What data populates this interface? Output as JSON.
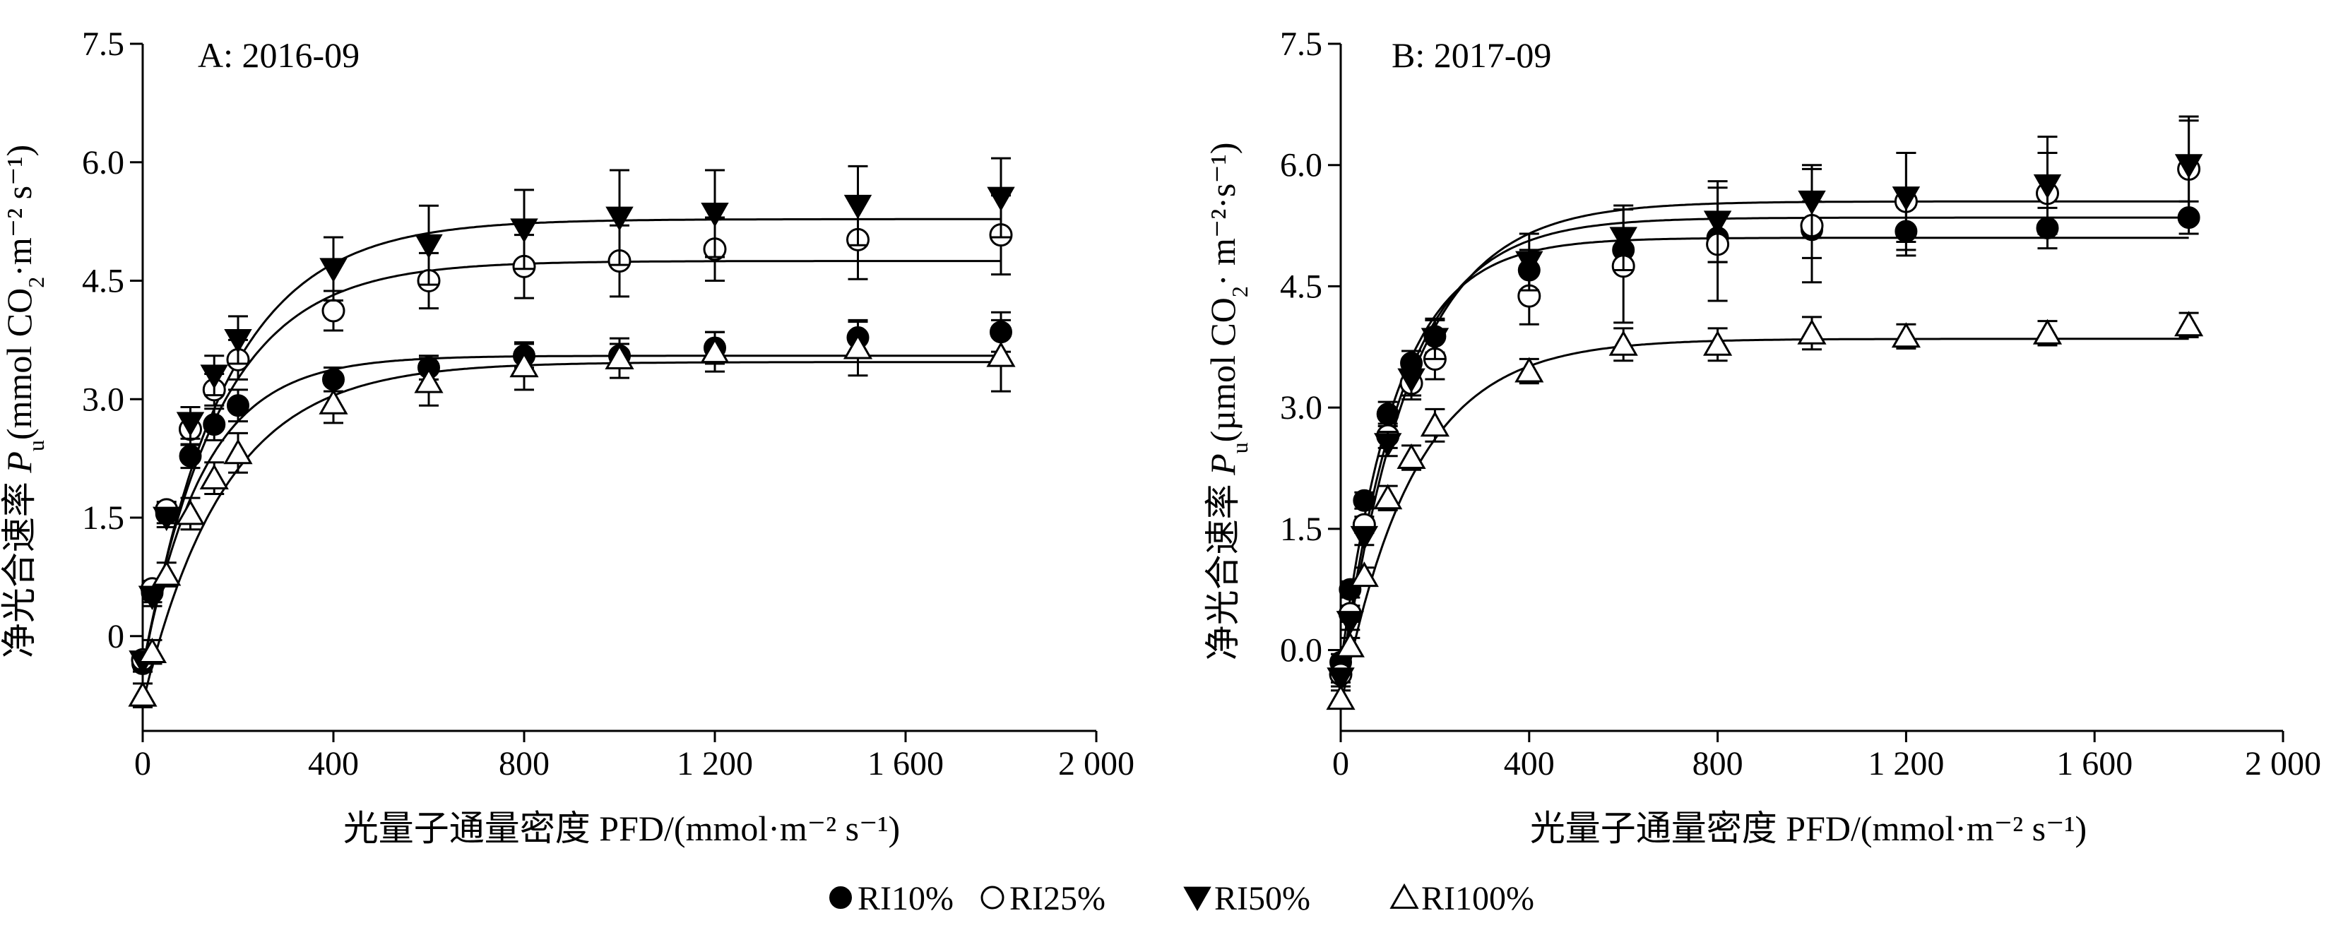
{
  "chart_data": [
    {
      "type": "scatter",
      "panel_label": "A: 2016-09",
      "xlabel": "光量子通量密度 PFD/(mmol·m⁻² s⁻¹)",
      "ylabel_prefix": "净光合速率 ",
      "ylabel_italic": "P",
      "ylabel_sub": "u",
      "ylabel_unit": "(mmol CO",
      "ylabel_unit_sub": "2",
      "ylabel_unit_rest": "·m⁻² s⁻¹)",
      "xlim": [
        0,
        2000
      ],
      "ylim": [
        -1.2,
        7.5
      ],
      "xticks": [
        0,
        400,
        800,
        1200,
        1600,
        2000
      ],
      "xtick_labels": [
        "0",
        "400",
        "800",
        "1 200",
        "1 600",
        "2 000"
      ],
      "yticks": [
        0,
        1.5,
        3.0,
        4.5,
        6.0,
        7.5
      ],
      "ytick_labels": [
        "0",
        "1.5",
        "3.0",
        "4.5",
        "6.0",
        "7.5"
      ],
      "x": [
        0,
        20,
        50,
        100,
        150,
        200,
        400,
        600,
        800,
        1000,
        1200,
        1500,
        1800
      ],
      "series": [
        {
          "name": "RI10%",
          "marker": "filled-circle",
          "values": [
            -0.35,
            0.55,
            1.55,
            2.28,
            2.68,
            2.92,
            3.25,
            3.4,
            3.55,
            3.55,
            3.65,
            3.78,
            3.85
          ],
          "errors": [
            0.1,
            0.12,
            0.12,
            0.15,
            0.2,
            0.2,
            0.15,
            0.15,
            0.15,
            0.15,
            0.2,
            0.2,
            0.25
          ],
          "fit": {
            "pmax": 3.55,
            "k": 0.0078,
            "r": -0.4
          }
        },
        {
          "name": "RI25%",
          "marker": "open-circle",
          "values": [
            -0.3,
            0.6,
            1.6,
            2.62,
            3.12,
            3.5,
            4.12,
            4.5,
            4.68,
            4.75,
            4.9,
            5.02,
            5.08
          ],
          "errors": [
            0.1,
            0.1,
            0.1,
            0.2,
            0.2,
            0.25,
            0.25,
            0.35,
            0.4,
            0.45,
            0.4,
            0.5,
            0.5
          ],
          "fit": {
            "pmax": 4.75,
            "k": 0.0062,
            "r": -0.4
          }
        },
        {
          "name": "RI50%",
          "marker": "filled-triangle-down",
          "values": [
            -0.32,
            0.5,
            1.5,
            2.7,
            3.3,
            3.75,
            4.65,
            4.95,
            5.15,
            5.3,
            5.35,
            5.45,
            5.55
          ],
          "errors": [
            0.1,
            0.12,
            0.12,
            0.2,
            0.25,
            0.3,
            0.4,
            0.5,
            0.5,
            0.6,
            0.55,
            0.5,
            0.5
          ],
          "fit": {
            "pmax": 5.28,
            "k": 0.0058,
            "r": -0.45
          }
        },
        {
          "name": "RI100%",
          "marker": "open-triangle-up",
          "values": [
            -0.75,
            -0.2,
            0.78,
            1.55,
            2.0,
            2.32,
            2.95,
            3.22,
            3.42,
            3.52,
            3.6,
            3.65,
            3.55
          ],
          "errors": [
            0.15,
            0.15,
            0.15,
            0.2,
            0.2,
            0.25,
            0.25,
            0.3,
            0.3,
            0.25,
            0.25,
            0.35,
            0.45
          ],
          "fit": {
            "pmax": 3.47,
            "k": 0.0058,
            "r": -0.85
          }
        }
      ]
    },
    {
      "type": "scatter",
      "panel_label": "B: 2017-09",
      "xlabel": "光量子通量密度 PFD/(mmol·m⁻² s⁻¹)",
      "ylabel_prefix": "净光合速率 ",
      "ylabel_italic": "P",
      "ylabel_sub": "u",
      "ylabel_unit": "(µmol CO",
      "ylabel_unit_sub": "2",
      "ylabel_unit_rest": "· m⁻²·s⁻¹)",
      "xlim": [
        0,
        2000
      ],
      "ylim": [
        -1.0,
        7.5
      ],
      "xticks": [
        0,
        400,
        800,
        1200,
        1600,
        2000
      ],
      "xtick_labels": [
        "0",
        "400",
        "800",
        "1 200",
        "1 600",
        "2 000"
      ],
      "yticks": [
        0,
        1.5,
        3.0,
        4.5,
        6.0,
        7.5
      ],
      "ytick_labels": [
        "0.0",
        "1.5",
        "3.0",
        "4.5",
        "6.0",
        "7.5"
      ],
      "x": [
        0,
        20,
        50,
        100,
        150,
        200,
        400,
        600,
        800,
        1000,
        1200,
        1500,
        1800
      ],
      "series": [
        {
          "name": "RI10%",
          "marker": "filled-circle",
          "values": [
            -0.15,
            0.75,
            1.85,
            2.92,
            3.55,
            3.88,
            4.7,
            4.95,
            5.1,
            5.2,
            5.18,
            5.22,
            5.35
          ],
          "errors": [
            0.1,
            0.1,
            0.1,
            0.15,
            0.15,
            0.2,
            0.25,
            0.25,
            0.3,
            0.35,
            0.3,
            0.25,
            0.2
          ],
          "fit": {
            "pmax": 5.1,
            "k": 0.0085,
            "r": -0.2
          }
        },
        {
          "name": "RI25%",
          "marker": "open-circle",
          "values": [
            -0.3,
            0.45,
            1.55,
            2.65,
            3.3,
            3.6,
            4.38,
            4.75,
            5.02,
            5.25,
            5.55,
            5.65,
            5.95
          ],
          "errors": [
            0.1,
            0.1,
            0.1,
            0.15,
            0.2,
            0.25,
            0.35,
            0.7,
            0.7,
            0.7,
            0.6,
            0.5,
            0.6
          ],
          "fit": {
            "pmax": 5.35,
            "k": 0.0075,
            "r": -0.4
          }
        },
        {
          "name": "RI50%",
          "marker": "filled-triangle-down",
          "values": [
            -0.35,
            0.35,
            1.4,
            2.55,
            3.35,
            3.85,
            4.8,
            5.1,
            5.3,
            5.55,
            5.6,
            5.75,
            6.0
          ],
          "errors": [
            0.1,
            0.1,
            0.1,
            0.15,
            0.2,
            0.25,
            0.35,
            0.4,
            0.5,
            0.45,
            0.55,
            0.6,
            0.6
          ],
          "fit": {
            "pmax": 5.55,
            "k": 0.0068,
            "r": -0.5
          }
        },
        {
          "name": "RI100%",
          "marker": "open-triangle-up",
          "values": [
            -0.6,
            0.05,
            0.92,
            1.88,
            2.38,
            2.78,
            3.45,
            3.78,
            3.78,
            3.92,
            3.88,
            3.92,
            4.02
          ],
          "errors": [
            0.1,
            0.1,
            0.1,
            0.15,
            0.15,
            0.2,
            0.15,
            0.2,
            0.2,
            0.2,
            0.15,
            0.15,
            0.15
          ],
          "fit": {
            "pmax": 3.85,
            "k": 0.0065,
            "r": -0.7
          }
        }
      ]
    }
  ],
  "legend": {
    "placement": "bottom-center",
    "entries": [
      {
        "label": "RI10%",
        "marker": "filled-circle"
      },
      {
        "label": "RI25%",
        "marker": "open-circle"
      },
      {
        "label": "RI50%",
        "marker": "filled-triangle-down"
      },
      {
        "label": "RI100%",
        "marker": "open-triangle-up"
      }
    ]
  }
}
